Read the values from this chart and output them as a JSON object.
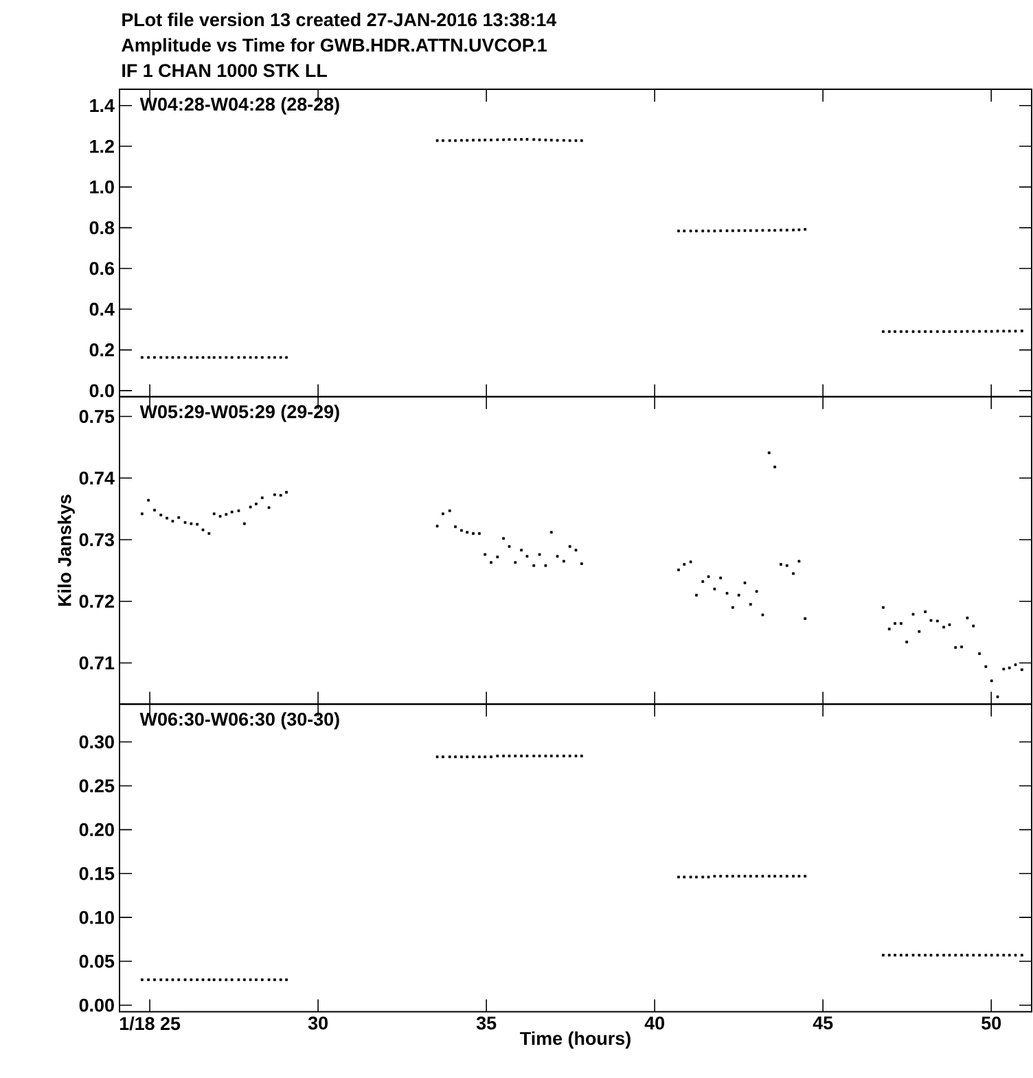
{
  "chart_data": [
    {
      "type": "scatter",
      "title": "PLot file version 13  created 27-JAN-2016 13:38:14",
      "subtitle": "Amplitude vs Time  for  GWB.HDR.ATTN.UVCOP.1",
      "annotations": [
        "IF 1   CHAN 1000   STK LL",
        "W04:28-W04:28 (28-28)"
      ],
      "x": [
        24.77,
        24.96,
        25.14,
        25.33,
        25.51,
        25.68,
        25.86,
        26.05,
        26.23,
        26.41,
        26.58,
        26.76,
        26.91,
        27.09,
        27.27,
        27.44,
        27.64,
        27.81,
        27.99,
        28.16,
        28.34,
        28.54,
        28.71,
        28.89,
        29.06,
        33.54,
        33.71,
        33.91,
        34.08,
        34.26,
        34.43,
        34.61,
        34.79,
        34.96,
        35.14,
        35.33,
        35.51,
        35.68,
        35.86,
        36.04,
        36.21,
        36.41,
        36.58,
        36.76,
        36.93,
        37.11,
        37.3,
        37.48,
        37.66,
        37.83,
        40.71,
        40.88,
        41.07,
        41.24,
        41.43,
        41.6,
        41.78,
        41.96,
        42.15,
        42.32,
        42.5,
        42.68,
        42.85,
        43.03,
        43.21,
        43.4,
        43.57,
        43.75,
        43.93,
        44.12,
        44.29,
        44.47,
        46.79,
        46.97,
        47.14,
        47.32,
        47.49,
        47.68,
        47.86,
        48.04,
        48.21,
        48.4,
        48.59,
        48.76,
        48.94,
        49.12,
        49.29,
        49.47,
        49.65,
        49.84,
        50.01,
        50.19,
        50.37,
        50.54,
        50.72,
        50.91
      ],
      "series": [
        {
          "color": "#000000",
          "values": [
            0.163,
            0.163,
            0.163,
            0.163,
            0.163,
            0.163,
            0.163,
            0.163,
            0.163,
            0.163,
            0.163,
            0.163,
            0.163,
            0.163,
            0.163,
            0.163,
            0.163,
            0.163,
            0.163,
            0.163,
            0.163,
            0.163,
            0.163,
            0.163,
            0.163,
            1.228,
            1.228,
            1.228,
            1.228,
            1.229,
            1.229,
            1.23,
            1.23,
            1.231,
            1.231,
            1.232,
            1.232,
            1.233,
            1.233,
            1.234,
            1.234,
            1.233,
            1.232,
            1.231,
            1.23,
            1.229,
            1.229,
            1.228,
            1.228,
            1.228,
            0.784,
            0.784,
            0.784,
            0.784,
            0.784,
            0.784,
            0.784,
            0.785,
            0.785,
            0.785,
            0.786,
            0.786,
            0.786,
            0.786,
            0.787,
            0.787,
            0.787,
            0.788,
            0.788,
            0.789,
            0.79,
            0.792,
            0.29,
            0.29,
            0.29,
            0.29,
            0.29,
            0.29,
            0.29,
            0.29,
            0.29,
            0.29,
            0.29,
            0.29,
            0.29,
            0.29,
            0.291,
            0.291,
            0.291,
            0.291,
            0.291,
            0.292,
            0.292,
            0.292,
            0.292,
            0.293
          ]
        }
      ],
      "xlim": [
        24.1,
        51.2
      ],
      "xticks": [
        25,
        30,
        35,
        40,
        45,
        50
      ],
      "ylim": [
        -0.03,
        1.48
      ],
      "yticks": [
        {
          "value": 0,
          "label": "0.0"
        },
        0.2,
        0.4,
        0.6,
        0.8,
        {
          "value": 1,
          "label": "1.0"
        },
        1.2,
        1.4
      ],
      "marker": "square",
      "tick_labels": "y"
    },
    {
      "type": "scatter",
      "ylabel": "Kilo Janskys",
      "annotations": [
        "W05:29-W05:29 (29-29)"
      ],
      "x": [
        24.77,
        24.96,
        25.14,
        25.33,
        25.51,
        25.68,
        25.86,
        26.05,
        26.23,
        26.41,
        26.58,
        26.76,
        26.91,
        27.09,
        27.27,
        27.44,
        27.64,
        27.81,
        27.99,
        28.16,
        28.34,
        28.54,
        28.71,
        28.89,
        29.06,
        33.54,
        33.71,
        33.91,
        34.08,
        34.26,
        34.43,
        34.61,
        34.79,
        34.96,
        35.14,
        35.33,
        35.51,
        35.68,
        35.86,
        36.04,
        36.21,
        36.41,
        36.58,
        36.76,
        36.93,
        37.11,
        37.3,
        37.48,
        37.66,
        37.83,
        40.71,
        40.88,
        41.07,
        41.24,
        41.43,
        41.6,
        41.78,
        41.96,
        42.15,
        42.32,
        42.5,
        42.68,
        42.85,
        43.03,
        43.21,
        43.4,
        43.57,
        43.75,
        43.93,
        44.12,
        44.29,
        44.47,
        46.79,
        46.97,
        47.14,
        47.32,
        47.49,
        47.68,
        47.86,
        48.04,
        48.21,
        48.4,
        48.59,
        48.76,
        48.94,
        49.12,
        49.29,
        49.47,
        49.65,
        49.84,
        50.01,
        50.19,
        50.37,
        50.54,
        50.72,
        50.91
      ],
      "series": [
        {
          "color": "#000000",
          "values": [
            0.7342,
            0.7364,
            0.7348,
            0.734,
            0.7335,
            0.733,
            0.7336,
            0.7328,
            0.7326,
            0.7325,
            0.7316,
            0.731,
            0.7342,
            0.7338,
            0.7341,
            0.7345,
            0.7347,
            0.7326,
            0.7353,
            0.7358,
            0.7368,
            0.7352,
            0.7373,
            0.7372,
            0.7377,
            0.7322,
            0.7342,
            0.7347,
            0.7321,
            0.7315,
            0.7312,
            0.731,
            0.731,
            0.7276,
            0.7263,
            0.7272,
            0.7302,
            0.7289,
            0.7263,
            0.7283,
            0.7273,
            0.7258,
            0.7276,
            0.7258,
            0.7312,
            0.7273,
            0.7265,
            0.7289,
            0.7283,
            0.7261,
            0.7251,
            0.726,
            0.7264,
            0.721,
            0.7232,
            0.724,
            0.722,
            0.7238,
            0.7213,
            0.719,
            0.721,
            0.723,
            0.7195,
            0.7216,
            0.7178,
            0.7441,
            0.7418,
            0.726,
            0.7258,
            0.7245,
            0.7265,
            0.7172,
            0.719,
            0.7155,
            0.7164,
            0.7164,
            0.7134,
            0.7179,
            0.7151,
            0.7183,
            0.7169,
            0.7168,
            0.7158,
            0.7162,
            0.7125,
            0.7126,
            0.7173,
            0.716,
            0.7115,
            0.7094,
            0.7071,
            0.7045,
            0.709,
            0.7092,
            0.7097,
            0.7089
          ]
        }
      ],
      "xlim": [
        24.1,
        51.2
      ],
      "xticks": [
        25,
        30,
        35,
        40,
        45,
        50
      ],
      "ylim": [
        0.7033,
        0.7532
      ],
      "yticks": [
        0.71,
        0.72,
        0.73,
        0.74,
        0.75
      ],
      "marker": "square",
      "tick_labels": "y"
    },
    {
      "type": "scatter",
      "xlabel": "Time (hours)",
      "annotations": [
        "W06:30-W06:30 (30-30)"
      ],
      "x": [
        24.77,
        24.96,
        25.14,
        25.33,
        25.51,
        25.68,
        25.86,
        26.05,
        26.23,
        26.41,
        26.58,
        26.76,
        26.91,
        27.09,
        27.27,
        27.44,
        27.64,
        27.81,
        27.99,
        28.16,
        28.34,
        28.54,
        28.71,
        28.89,
        29.06,
        33.54,
        33.71,
        33.91,
        34.08,
        34.26,
        34.43,
        34.61,
        34.79,
        34.96,
        35.14,
        35.33,
        35.51,
        35.68,
        35.86,
        36.04,
        36.21,
        36.41,
        36.58,
        36.76,
        36.93,
        37.11,
        37.3,
        37.48,
        37.66,
        37.83,
        40.71,
        40.88,
        41.07,
        41.24,
        41.43,
        41.6,
        41.78,
        41.96,
        42.15,
        42.32,
        42.5,
        42.68,
        42.85,
        43.03,
        43.21,
        43.4,
        43.57,
        43.75,
        43.93,
        44.12,
        44.29,
        44.47,
        46.79,
        46.97,
        47.14,
        47.32,
        47.49,
        47.68,
        47.86,
        48.04,
        48.21,
        48.4,
        48.59,
        48.76,
        48.94,
        49.12,
        49.29,
        49.47,
        49.65,
        49.84,
        50.01,
        50.19,
        50.37,
        50.54,
        50.72,
        50.91
      ],
      "series": [
        {
          "color": "#000000",
          "values": [
            0.029,
            0.029,
            0.029,
            0.029,
            0.029,
            0.029,
            0.029,
            0.029,
            0.029,
            0.029,
            0.029,
            0.029,
            0.029,
            0.029,
            0.029,
            0.029,
            0.029,
            0.029,
            0.029,
            0.029,
            0.029,
            0.029,
            0.029,
            0.029,
            0.029,
            0.283,
            0.283,
            0.283,
            0.283,
            0.283,
            0.283,
            0.283,
            0.283,
            0.283,
            0.283,
            0.284,
            0.284,
            0.284,
            0.284,
            0.284,
            0.284,
            0.284,
            0.284,
            0.284,
            0.284,
            0.284,
            0.284,
            0.284,
            0.284,
            0.284,
            0.146,
            0.146,
            0.146,
            0.146,
            0.146,
            0.146,
            0.147,
            0.147,
            0.147,
            0.147,
            0.147,
            0.147,
            0.147,
            0.147,
            0.147,
            0.147,
            0.147,
            0.147,
            0.147,
            0.147,
            0.147,
            0.147,
            0.057,
            0.057,
            0.057,
            0.057,
            0.057,
            0.057,
            0.057,
            0.057,
            0.057,
            0.057,
            0.057,
            0.057,
            0.057,
            0.057,
            0.057,
            0.057,
            0.057,
            0.057,
            0.057,
            0.057,
            0.057,
            0.057,
            0.057,
            0.057
          ]
        }
      ],
      "xlim": [
        24.1,
        51.2
      ],
      "xticks": [
        {
          "value": 25,
          "label": "1/18 25"
        },
        30,
        35,
        40,
        45,
        50
      ],
      "ylim": [
        -0.0074,
        0.343
      ],
      "yticks": [
        {
          "value": 0,
          "label": "0.00"
        },
        0.05,
        {
          "value": 0.1,
          "label": "0.10"
        },
        0.15,
        {
          "value": 0.2,
          "label": "0.20"
        },
        0.25,
        {
          "value": 0.3,
          "label": "0.30"
        }
      ],
      "marker": "square"
    }
  ]
}
